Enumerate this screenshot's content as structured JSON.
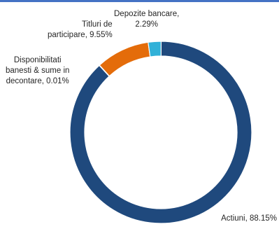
{
  "chart_data": {
    "type": "pie",
    "title": "",
    "slices": [
      {
        "label": "Actiuni",
        "value": 88.15,
        "value_label": "88.15%",
        "color": "#1f497d"
      },
      {
        "label": "Disponibilitati banesti & sume in decontare",
        "value": 0.01,
        "value_label": "0.01%",
        "color": "#4f81bd"
      },
      {
        "label": "Titluri de participare",
        "value": 9.55,
        "value_label": "9.55%",
        "color": "#e46c0a"
      },
      {
        "label": "Depozite bancare",
        "value": 2.29,
        "value_label": "2.29%",
        "color": "#31b1d8"
      }
    ],
    "data_labels": [
      "Actiuni, 88.15%",
      "Disponibilitati\nbanesti & sume in\ndecontare, 0.01%",
      "Titluri de\nparticipare, 9.55%",
      "Depozite bancare,\n2.29%"
    ],
    "donut": true,
    "legend": "none"
  }
}
